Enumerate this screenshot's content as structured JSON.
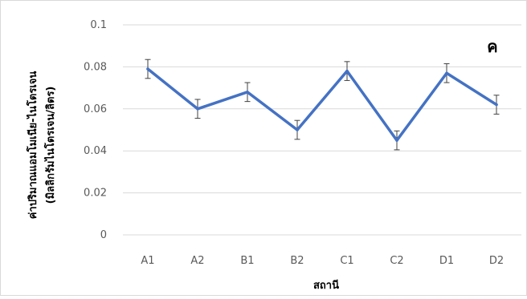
{
  "chart_data": {
    "type": "line",
    "panel_label": "ค",
    "title": "",
    "xlabel": "สถานี",
    "ylabel": [
      "ค่าปริมาณแอมโมเนีย-ไนโตรเจน",
      "(มิลลิกรัมไนโตรเจน/ลิตร)"
    ],
    "categories": [
      "A1",
      "A2",
      "B1",
      "B2",
      "C1",
      "C2",
      "D1",
      "D2"
    ],
    "yticks": [
      "0",
      "0.02",
      "0.04",
      "0.06",
      "0.08",
      "0.1"
    ],
    "ylim": [
      0,
      0.1
    ],
    "grid": true,
    "legend": "none",
    "series": [
      {
        "values": [
          0.079,
          0.06,
          0.068,
          0.05,
          0.078,
          0.045,
          0.077,
          0.062
        ],
        "error": [
          0.0045,
          0.0045,
          0.0045,
          0.0045,
          0.0045,
          0.0045,
          0.0045,
          0.0045
        ],
        "color": "#4472c4"
      }
    ],
    "gridline_color": "#d9d9d9",
    "errorbar_color": "#404040"
  }
}
